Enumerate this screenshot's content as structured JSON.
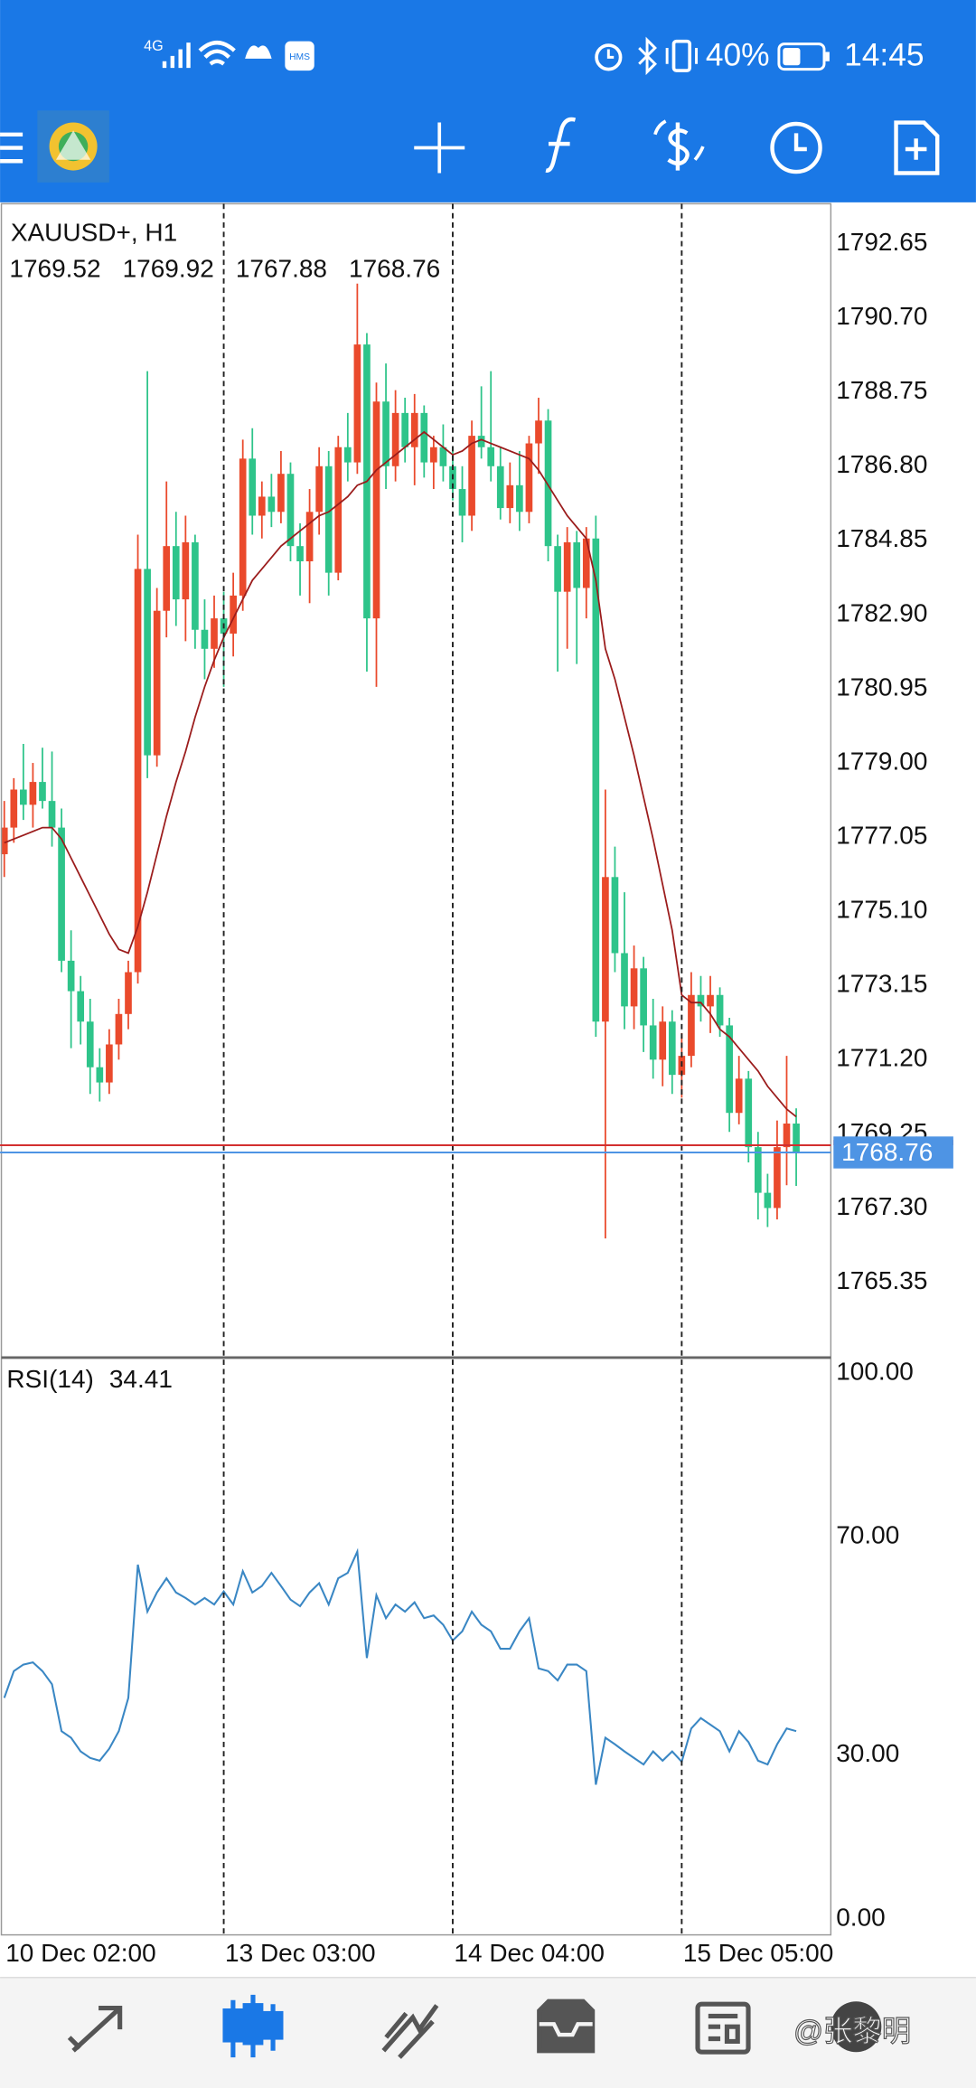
{
  "status_bar": {
    "network": "4G",
    "hms": "HMS",
    "battery": "40%",
    "time": "14:45"
  },
  "chart_data": [
    {
      "type": "candlestick",
      "title": "XAUUSD+, H1",
      "categories": [
        "10 Dec 02:00",
        null,
        null,
        null,
        null,
        null,
        null,
        null,
        null,
        null,
        null,
        null,
        null,
        null,
        null,
        null,
        null,
        null,
        null,
        null,
        null,
        null,
        null,
        "13 Dec 03:00",
        null,
        null,
        null,
        null,
        null,
        null,
        null,
        null,
        null,
        null,
        null,
        null,
        null,
        null,
        null,
        null,
        null,
        null,
        null,
        null,
        null,
        null,
        null,
        "14 Dec 04:00",
        null,
        null,
        null,
        null,
        null,
        null,
        null,
        null,
        null,
        null,
        null,
        null,
        null,
        null,
        null,
        null,
        null,
        null,
        null,
        null,
        null,
        null,
        null,
        "15 Dec 05:00",
        null,
        null,
        null,
        null,
        null,
        null,
        null,
        null,
        null,
        null,
        null,
        null
      ],
      "open": [
        1776.6,
        1777.3,
        1778.3,
        1777.9,
        1778.5,
        1778.0,
        1777.3,
        1773.8,
        1773.0,
        1772.2,
        1771.0,
        1770.6,
        1771.6,
        1772.4,
        1773.5,
        1784.1,
        1779.2,
        1783.0,
        1784.7,
        1783.3,
        1784.8,
        1782.5,
        1782.0,
        1782.8,
        1782.4,
        1783.4,
        1787.0,
        1785.5,
        1786.0,
        1785.6,
        1786.6,
        1784.7,
        1784.3,
        1785.6,
        1786.8,
        1784.0,
        1787.3,
        1786.9,
        1790.0,
        1782.8,
        1788.5,
        1786.8,
        1788.2,
        1787.3,
        1788.2,
        1786.9,
        1787.3,
        1786.8,
        1786.2,
        1785.5,
        1787.6,
        1787.3,
        1786.8,
        1785.7,
        1786.3,
        1785.6,
        1787.4,
        1788.0,
        1784.7,
        1783.5,
        1784.8,
        1783.6,
        1784.9,
        1772.2,
        1776.0,
        1774.0,
        1772.6,
        1773.6,
        1772.1,
        1771.2,
        1772.2,
        1770.8,
        1771.3,
        1772.9,
        1772.6,
        1772.9,
        1772.1,
        1769.8,
        1770.7,
        1768.9,
        1767.7,
        1767.3,
        1768.9,
        1769.52
      ],
      "high": [
        1778.0,
        1778.6,
        1779.5,
        1779.0,
        1779.4,
        1779.3,
        1777.8,
        1774.6,
        1773.4,
        1772.8,
        1771.5,
        1772.0,
        1772.8,
        1773.8,
        1785.0,
        1789.3,
        1783.6,
        1786.4,
        1785.6,
        1785.5,
        1785.0,
        1783.3,
        1783.4,
        1783.5,
        1784.0,
        1787.5,
        1787.8,
        1786.4,
        1786.6,
        1787.2,
        1786.9,
        1785.3,
        1786.2,
        1787.3,
        1787.2,
        1787.6,
        1788.2,
        1791.6,
        1790.3,
        1789.0,
        1789.5,
        1788.8,
        1788.6,
        1788.7,
        1788.4,
        1787.6,
        1787.9,
        1787.3,
        1786.8,
        1788.0,
        1788.9,
        1789.3,
        1787.3,
        1786.9,
        1787.2,
        1787.6,
        1788.6,
        1788.3,
        1785.0,
        1785.2,
        1785.1,
        1785.2,
        1785.5,
        1778.3,
        1776.8,
        1775.6,
        1774.2,
        1773.9,
        1772.8,
        1772.6,
        1772.5,
        1771.9,
        1773.5,
        1773.4,
        1773.4,
        1773.1,
        1772.3,
        1771.3,
        1770.9,
        1769.3,
        1768.2,
        1769.6,
        1771.3,
        1769.92
      ],
      "low": [
        1776.0,
        1776.9,
        1777.5,
        1777.3,
        1777.8,
        1776.8,
        1773.5,
        1771.5,
        1771.6,
        1770.3,
        1770.1,
        1770.3,
        1771.2,
        1772.0,
        1773.2,
        1778.6,
        1778.9,
        1782.3,
        1782.6,
        1782.2,
        1782.0,
        1781.2,
        1781.5,
        1781.0,
        1781.8,
        1783.0,
        1785.0,
        1784.9,
        1785.2,
        1785.3,
        1784.3,
        1783.4,
        1783.2,
        1785.0,
        1783.4,
        1783.8,
        1786.4,
        1786.6,
        1781.4,
        1781.0,
        1786.2,
        1786.4,
        1786.9,
        1786.3,
        1786.5,
        1786.2,
        1786.4,
        1785.9,
        1784.8,
        1785.1,
        1787.0,
        1786.4,
        1785.4,
        1785.3,
        1785.1,
        1785.3,
        1786.6,
        1784.3,
        1781.4,
        1782.0,
        1781.6,
        1782.8,
        1771.8,
        1766.5,
        1773.5,
        1772.0,
        1772.0,
        1771.4,
        1770.7,
        1770.5,
        1770.3,
        1770.2,
        1771.0,
        1772.2,
        1771.9,
        1771.8,
        1769.3,
        1769.5,
        1768.5,
        1767.0,
        1766.8,
        1767.0,
        1767.9,
        1767.88
      ],
      "close": [
        1777.3,
        1778.3,
        1777.9,
        1778.5,
        1778.0,
        1777.3,
        1773.8,
        1773.0,
        1772.2,
        1771.0,
        1770.6,
        1771.6,
        1772.4,
        1773.5,
        1784.1,
        1779.2,
        1783.0,
        1784.7,
        1783.3,
        1784.8,
        1782.5,
        1782.0,
        1782.8,
        1782.4,
        1783.4,
        1787.0,
        1785.5,
        1786.0,
        1785.6,
        1786.6,
        1784.7,
        1784.3,
        1785.6,
        1786.8,
        1784.0,
        1787.3,
        1786.9,
        1790.0,
        1782.8,
        1788.5,
        1786.8,
        1788.2,
        1787.3,
        1788.2,
        1786.9,
        1787.3,
        1786.8,
        1786.2,
        1785.5,
        1787.6,
        1787.3,
        1786.8,
        1785.7,
        1786.3,
        1785.6,
        1787.4,
        1788.0,
        1784.7,
        1783.5,
        1784.8,
        1783.6,
        1784.9,
        1772.2,
        1776.0,
        1774.0,
        1772.6,
        1773.6,
        1772.1,
        1771.2,
        1772.2,
        1770.8,
        1771.3,
        1772.9,
        1772.6,
        1772.9,
        1772.1,
        1769.8,
        1770.7,
        1768.9,
        1767.7,
        1767.3,
        1768.9,
        1769.52,
        1768.76
      ],
      "up_color": "#ea4a2c",
      "down_color": "#2ec48a",
      "overlay": {
        "color": "#9b1c1c",
        "values": [
          1776.9,
          1777.0,
          1777.1,
          1777.2,
          1777.3,
          1777.3,
          1777.0,
          1776.5,
          1776.0,
          1775.5,
          1775.0,
          1774.5,
          1774.1,
          1774.0,
          1774.7,
          1775.6,
          1776.6,
          1777.6,
          1778.5,
          1779.3,
          1780.2,
          1781.0,
          1781.7,
          1782.3,
          1782.8,
          1783.3,
          1783.8,
          1784.1,
          1784.4,
          1784.7,
          1784.9,
          1785.1,
          1785.3,
          1785.5,
          1785.6,
          1785.8,
          1786.0,
          1786.3,
          1786.4,
          1786.7,
          1786.9,
          1787.1,
          1787.3,
          1787.5,
          1787.7,
          1787.5,
          1787.3,
          1787.1,
          1787.2,
          1787.4,
          1787.5,
          1787.4,
          1787.3,
          1787.2,
          1787.1,
          1787.0,
          1786.7,
          1786.3,
          1785.9,
          1785.5,
          1785.2,
          1784.9,
          1783.8,
          1782.0,
          1781.2,
          1780.2,
          1779.2,
          1778.1,
          1777.0,
          1775.8,
          1774.6,
          1772.9,
          1772.7,
          1772.7,
          1772.4,
          1772.0,
          1771.8,
          1771.5,
          1771.2,
          1770.9,
          1770.5,
          1770.2,
          1769.9,
          1769.7
        ]
      },
      "bid_color": "#4e94e4",
      "ask": 1768.95,
      "ask_color": "#d32f2f",
      "ylim": [
        1763.42,
        1793.7
      ],
      "yticks": [
        1765.35,
        {
          "value": 1767.3,
          "label": "1767.30"
        },
        1769.25,
        {
          "value": 1771.2,
          "label": "1771.20"
        },
        1773.15,
        {
          "value": 1775.1,
          "label": "1775.10"
        },
        1777.05,
        {
          "value": 1779,
          "label": "1779.00"
        },
        1780.95,
        {
          "value": 1782.9,
          "label": "1782.90"
        },
        1784.85,
        {
          "value": 1786.8,
          "label": "1786.80"
        },
        1788.75,
        {
          "value": 1790.7,
          "label": "1790.70"
        },
        1792.65
      ],
      "grid": true
    },
    {
      "type": "line",
      "title": "RSI(14)",
      "color": "#3a87c4",
      "values": [
        40.5,
        45.4,
        46.6,
        47.0,
        45.4,
        43.0,
        34.4,
        33.2,
        30.7,
        29.5,
        29.0,
        31.2,
        34.4,
        40.5,
        64.9,
        56.3,
        59.8,
        62.4,
        59.8,
        58.8,
        57.6,
        58.8,
        57.6,
        60.0,
        57.6,
        63.7,
        59.8,
        61.0,
        63.4,
        61.0,
        58.5,
        57.3,
        59.8,
        61.5,
        57.6,
        62.4,
        63.4,
        67.3,
        47.8,
        59.3,
        55.1,
        57.6,
        56.3,
        58.0,
        55.1,
        55.6,
        53.9,
        51.0,
        52.7,
        56.3,
        53.9,
        52.7,
        49.5,
        49.5,
        52.7,
        55.1,
        45.9,
        45.4,
        43.7,
        46.6,
        46.6,
        45.4,
        24.6,
        33.2,
        32.0,
        30.7,
        29.5,
        28.3,
        30.7,
        29.0,
        30.7,
        28.8,
        34.9,
        36.8,
        35.6,
        34.4,
        30.7,
        34.4,
        32.4,
        29.0,
        28.3,
        32.0,
        34.9,
        34.41
      ],
      "ylim": [
        -2.9,
        102.7
      ],
      "yticks": [
        {
          "value": 0,
          "label": "0.00"
        },
        {
          "value": 30,
          "label": "30.00"
        },
        {
          "value": 70,
          "label": "70.00"
        },
        {
          "value": 100,
          "label": "100.00"
        }
      ],
      "grid": true
    }
  ],
  "watermark": "@张黎明"
}
